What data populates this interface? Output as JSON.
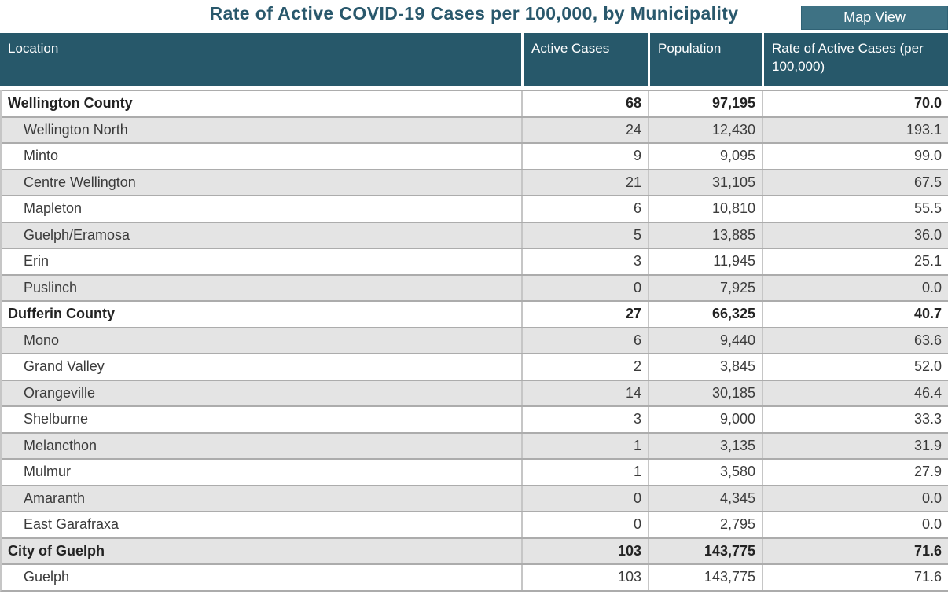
{
  "header": {
    "title": "Rate of Active COVID-19 Cases per 100,000, by Municipality",
    "map_view_label": "Map View"
  },
  "colors": {
    "table_header_bg": "#27586a",
    "map_button_bg": "#3e7284",
    "title_text": "#29586c",
    "alt_row_bg": "#e4e4e4",
    "row_border": "#acacac"
  },
  "table": {
    "columns": [
      "Location",
      "Active Cases",
      "Population",
      "Rate of Active Cases (per 100,000)"
    ],
    "rows": [
      {
        "location": "Wellington County",
        "active_cases": "68",
        "population": "97,195",
        "rate": "70.0",
        "is_group": true
      },
      {
        "location": "Wellington North",
        "active_cases": "24",
        "population": "12,430",
        "rate": "193.1",
        "is_group": false
      },
      {
        "location": "Minto",
        "active_cases": "9",
        "population": "9,095",
        "rate": "99.0",
        "is_group": false
      },
      {
        "location": "Centre Wellington",
        "active_cases": "21",
        "population": "31,105",
        "rate": "67.5",
        "is_group": false
      },
      {
        "location": "Mapleton",
        "active_cases": "6",
        "population": "10,810",
        "rate": "55.5",
        "is_group": false
      },
      {
        "location": "Guelph/Eramosa",
        "active_cases": "5",
        "population": "13,885",
        "rate": "36.0",
        "is_group": false
      },
      {
        "location": "Erin",
        "active_cases": "3",
        "population": "11,945",
        "rate": "25.1",
        "is_group": false
      },
      {
        "location": "Puslinch",
        "active_cases": "0",
        "population": "7,925",
        "rate": "0.0",
        "is_group": false
      },
      {
        "location": "Dufferin County",
        "active_cases": "27",
        "population": "66,325",
        "rate": "40.7",
        "is_group": true
      },
      {
        "location": "Mono",
        "active_cases": "6",
        "population": "9,440",
        "rate": "63.6",
        "is_group": false
      },
      {
        "location": "Grand Valley",
        "active_cases": "2",
        "population": "3,845",
        "rate": "52.0",
        "is_group": false
      },
      {
        "location": "Orangeville",
        "active_cases": "14",
        "population": "30,185",
        "rate": "46.4",
        "is_group": false
      },
      {
        "location": "Shelburne",
        "active_cases": "3",
        "population": "9,000",
        "rate": "33.3",
        "is_group": false
      },
      {
        "location": "Melancthon",
        "active_cases": "1",
        "population": "3,135",
        "rate": "31.9",
        "is_group": false
      },
      {
        "location": "Mulmur",
        "active_cases": "1",
        "population": "3,580",
        "rate": "27.9",
        "is_group": false
      },
      {
        "location": "Amaranth",
        "active_cases": "0",
        "population": "4,345",
        "rate": "0.0",
        "is_group": false
      },
      {
        "location": "East Garafraxa",
        "active_cases": "0",
        "population": "2,795",
        "rate": "0.0",
        "is_group": false
      },
      {
        "location": "City of Guelph",
        "active_cases": "103",
        "population": "143,775",
        "rate": "71.6",
        "is_group": true
      },
      {
        "location": "Guelph",
        "active_cases": "103",
        "population": "143,775",
        "rate": "71.6",
        "is_group": false
      }
    ]
  }
}
